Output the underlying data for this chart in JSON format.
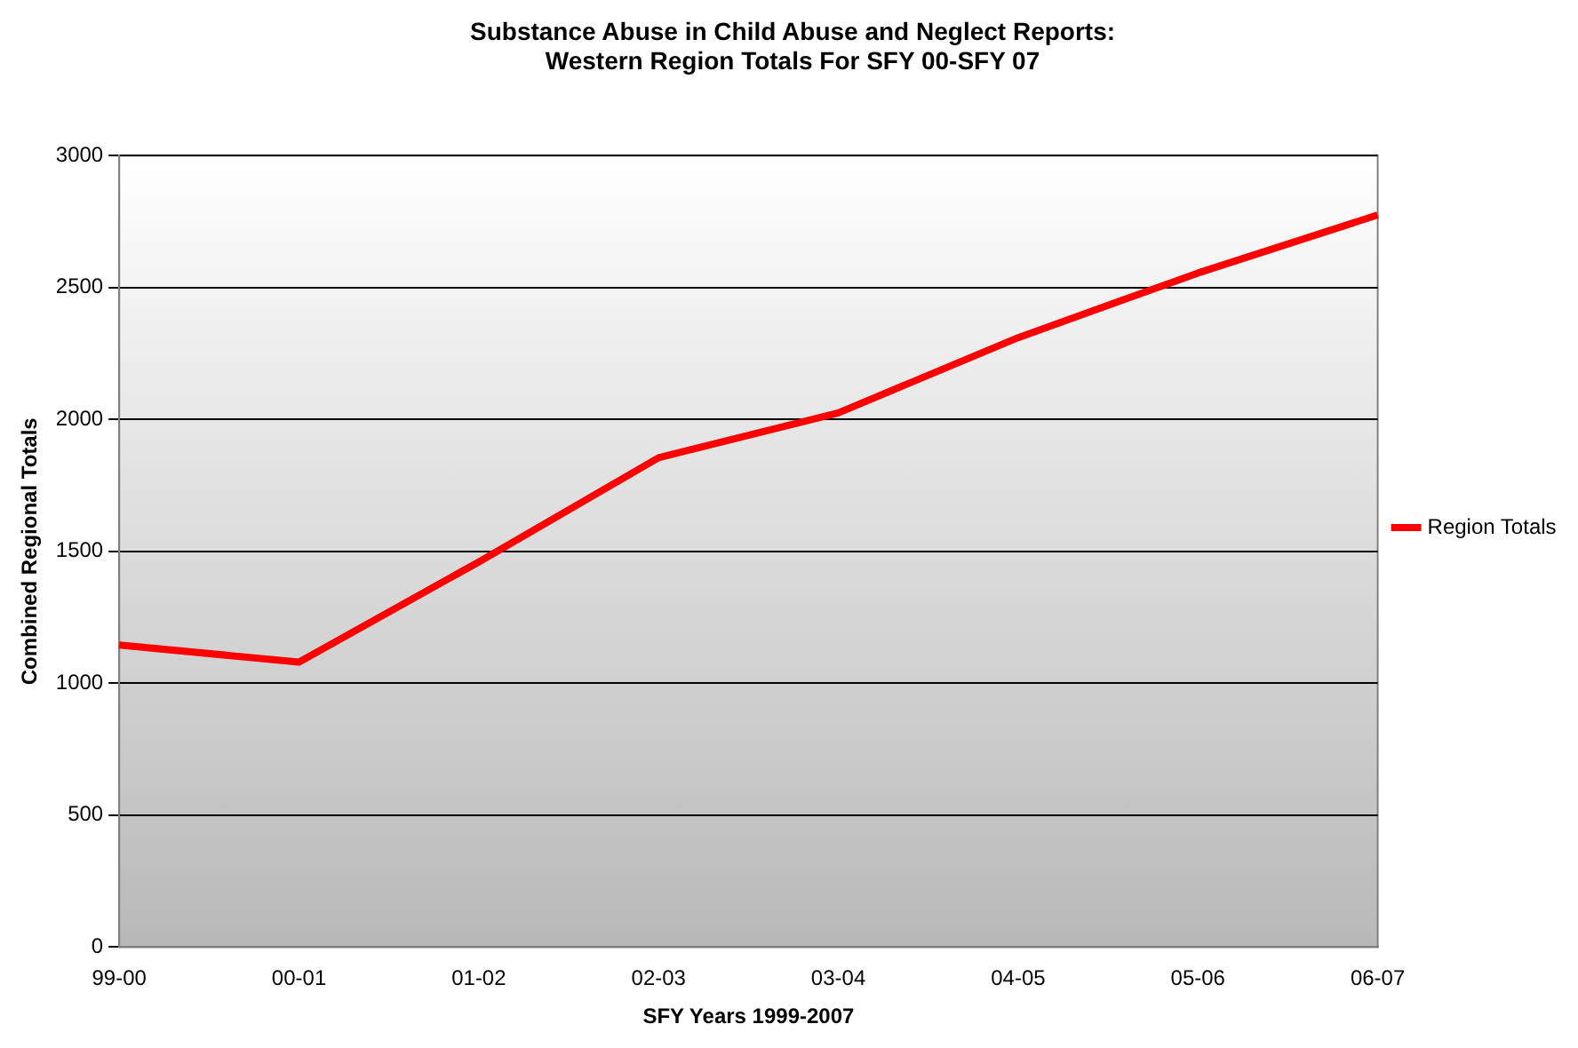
{
  "chart_data": {
    "type": "line",
    "title": "Substance Abuse in Child Abuse and Neglect Reports:\nWestern Region Totals For SFY 00-SFY 07",
    "xlabel": "SFY Years 1999-2007",
    "ylabel": "Combined Regional Totals",
    "categories": [
      "99-00",
      "00-01",
      "01-02",
      "02-03",
      "03-04",
      "04-05",
      "05-06",
      "06-07"
    ],
    "series": [
      {
        "name": "Region Totals",
        "color": "#ff0000",
        "values": [
          1145,
          1080,
          1460,
          1855,
          2025,
          2310,
          2555,
          2775
        ]
      }
    ],
    "ylim": [
      0,
      3000
    ],
    "yticks": [
      0,
      500,
      1000,
      1500,
      2000,
      2500,
      3000
    ],
    "grid": "y",
    "legend": "right",
    "marker": "none",
    "line_style": "solid"
  }
}
